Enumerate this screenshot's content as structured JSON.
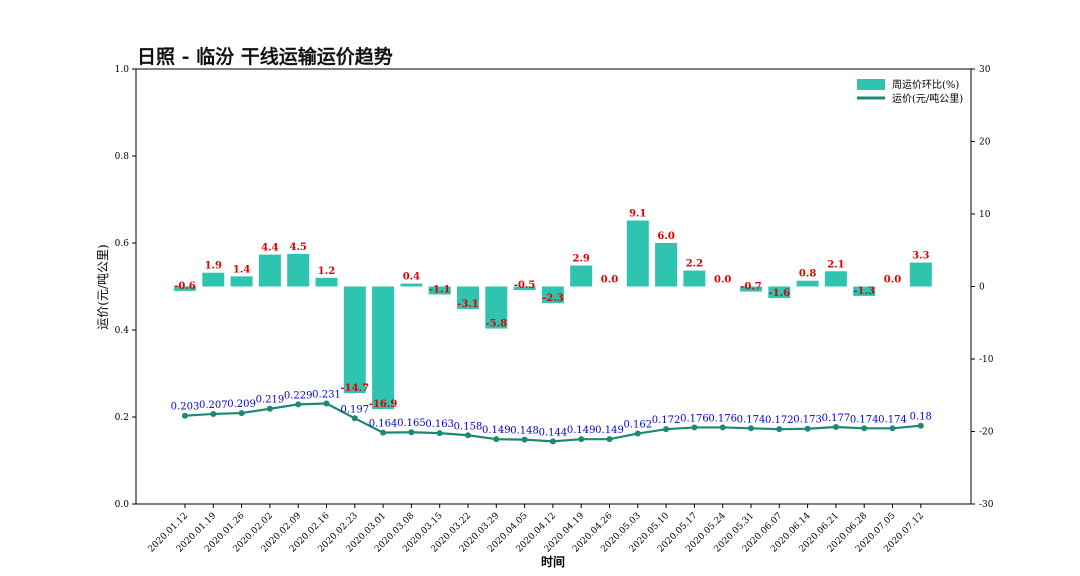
{
  "chart_data": {
    "type": "bar+line",
    "title": "日照 - 临汾 干线运输运价趋势",
    "xlabel": "时间",
    "ylabel_left": "运价(元/吨公里)",
    "ylabel_right": "",
    "ylim_left": [
      0.0,
      1.0
    ],
    "yticks_left": [
      "0.0",
      "0.2",
      "0.4",
      "0.6",
      "0.8",
      "1.0"
    ],
    "ylim_right": [
      -30,
      30
    ],
    "yticks_right": [
      "-30",
      "-20",
      "-10",
      "0",
      "10",
      "20",
      "30"
    ],
    "grid": false,
    "legend_position": "top-right",
    "categories": [
      "2020.01.12",
      "2020.01.19",
      "2020.01.26",
      "2020.02.02",
      "2020.02.09",
      "2020.02.16",
      "2020.02.23",
      "2020.03.01",
      "2020.03.08",
      "2020.03.15",
      "2020.03.22",
      "2020.03.29",
      "2020.04.05",
      "2020.04.12",
      "2020.04.19",
      "2020.04.26",
      "2020.05.03",
      "2020.05.10",
      "2020.05.17",
      "2020.05.24",
      "2020.05.31",
      "2020.06.07",
      "2020.06.14",
      "2020.06.21",
      "2020.06.28",
      "2020.07.05",
      "2020.07.12"
    ],
    "series": [
      {
        "name": "周运价环比(%)",
        "kind": "bar",
        "axis": "right",
        "color": "#2ec4b0",
        "label_color": "#e00000",
        "values": [
          -0.6,
          1.9,
          1.4,
          4.4,
          4.5,
          1.2,
          -14.7,
          -16.9,
          0.4,
          -1.1,
          -3.1,
          -5.8,
          -0.5,
          -2.3,
          2.9,
          0.0,
          9.1,
          6.0,
          2.2,
          0.0,
          -0.7,
          -1.6,
          0.8,
          2.1,
          -1.3,
          0.0,
          3.3
        ],
        "labels": [
          "-0.6",
          "1.9",
          "1.4",
          "4.4",
          "4.5",
          "1.2",
          "-14.7",
          "-16.9",
          "0.4",
          "-1.1",
          "-3.1",
          "-5.8",
          "-0.5",
          "-2.3",
          "2.9",
          "0.0",
          "9.1",
          "6.0",
          "2.2",
          "0.0",
          "-0.7",
          "-1.6",
          "0.8",
          "2.1",
          "-1.3",
          "0.0",
          "3.3"
        ]
      },
      {
        "name": "运价(元/吨公里)",
        "kind": "line",
        "axis": "left",
        "color": "#1a8a74",
        "label_color": "#0000dd",
        "values": [
          0.203,
          0.207,
          0.209,
          0.219,
          0.229,
          0.231,
          0.197,
          0.164,
          0.165,
          0.163,
          0.158,
          0.149,
          0.148,
          0.144,
          0.149,
          0.149,
          0.162,
          0.172,
          0.176,
          0.176,
          0.174,
          0.172,
          0.173,
          0.177,
          0.174,
          0.174,
          0.18
        ],
        "labels": [
          "0.203",
          "0.207",
          "0.209",
          "0.219",
          "0.229",
          "0.231",
          "0.197",
          "0.164",
          "0.165",
          "0.163",
          "0.158",
          "0.149",
          "0.148",
          "0.144",
          "0.149",
          "0.149",
          "0.162",
          "0.172",
          "0.176",
          "0.176",
          "0.174",
          "0.172",
          "0.173",
          "0.177",
          "0.174",
          "0.174",
          "0.18"
        ]
      }
    ]
  }
}
